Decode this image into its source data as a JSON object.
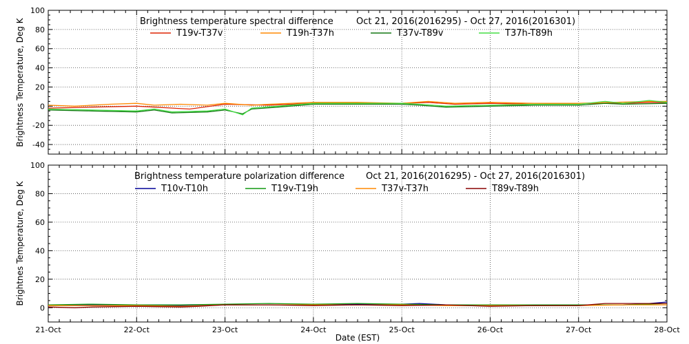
{
  "chart_data": [
    {
      "type": "line",
      "title": "Brightness temperature spectral difference",
      "date_range": "Oct 21, 2016(2016295) - Oct 27, 2016(2016301)",
      "ylabel": "Brightness Temperature, Deg K",
      "xlim": [
        0,
        7
      ],
      "ylim": [
        -50,
        100
      ],
      "yticks": [
        -40,
        -20,
        0,
        20,
        40,
        60,
        80,
        100
      ],
      "grid": true,
      "legend_position": "top",
      "series": [
        {
          "name": "T19v-T37v",
          "color": "#dd2200",
          "points": [
            [
              0,
              -2
            ],
            [
              0.5,
              -1
            ],
            [
              1,
              0
            ],
            [
              1.2,
              -1
            ],
            [
              1.6,
              -3
            ],
            [
              2,
              2
            ],
            [
              2.5,
              1
            ],
            [
              3,
              3
            ],
            [
              3.5,
              3
            ],
            [
              4,
              3
            ],
            [
              4.3,
              4
            ],
            [
              4.6,
              2
            ],
            [
              5,
              3
            ],
            [
              5.5,
              2
            ],
            [
              6,
              3
            ],
            [
              6.5,
              3
            ],
            [
              6.8,
              4
            ],
            [
              7,
              4
            ]
          ]
        },
        {
          "name": "T19h-T37h",
          "color": "#ff8800",
          "points": [
            [
              0,
              1
            ],
            [
              0.3,
              0
            ],
            [
              0.7,
              2
            ],
            [
              1,
              3
            ],
            [
              1.2,
              1
            ],
            [
              1.5,
              2
            ],
            [
              1.8,
              1
            ],
            [
              2,
              3
            ],
            [
              2.3,
              1
            ],
            [
              2.5,
              2
            ],
            [
              3,
              4
            ],
            [
              3.5,
              4
            ],
            [
              4,
              3
            ],
            [
              4.3,
              5
            ],
            [
              4.6,
              3
            ],
            [
              5,
              4
            ],
            [
              5.5,
              3
            ],
            [
              6,
              3
            ],
            [
              6.4,
              4
            ],
            [
              6.8,
              5
            ],
            [
              7,
              5
            ]
          ]
        },
        {
          "name": "T37v-T89v",
          "color": "#117711",
          "points": [
            [
              0,
              -4
            ],
            [
              0.5,
              -5
            ],
            [
              1,
              -6
            ],
            [
              1.2,
              -4
            ],
            [
              1.4,
              -7
            ],
            [
              1.8,
              -6
            ],
            [
              2,
              -4
            ],
            [
              2.2,
              -8
            ],
            [
              2.3,
              -3
            ],
            [
              2.6,
              -1
            ],
            [
              3,
              2
            ],
            [
              3.5,
              2
            ],
            [
              4,
              2
            ],
            [
              4.2,
              1
            ],
            [
              4.5,
              -1
            ],
            [
              5,
              0
            ],
            [
              5.5,
              1
            ],
            [
              6,
              1
            ],
            [
              6.3,
              3
            ],
            [
              6.5,
              2
            ],
            [
              7,
              3
            ]
          ]
        },
        {
          "name": "T37h-T89h",
          "color": "#44dd44",
          "points": [
            [
              0,
              -3
            ],
            [
              0.5,
              -4
            ],
            [
              1,
              -5
            ],
            [
              1.2,
              -3
            ],
            [
              1.4,
              -6
            ],
            [
              1.8,
              -5
            ],
            [
              2,
              -3
            ],
            [
              2.2,
              -9
            ],
            [
              2.3,
              -2
            ],
            [
              2.6,
              0
            ],
            [
              3,
              3
            ],
            [
              3.5,
              3
            ],
            [
              4,
              3
            ],
            [
              4.2,
              2
            ],
            [
              4.5,
              0
            ],
            [
              5,
              1
            ],
            [
              5.5,
              2
            ],
            [
              6,
              2
            ],
            [
              6.3,
              5
            ],
            [
              6.5,
              3
            ],
            [
              6.8,
              6
            ],
            [
              7,
              4
            ]
          ]
        }
      ]
    },
    {
      "type": "line",
      "title": "Brightness temperature polarization difference",
      "date_range": "Oct 21, 2016(2016295) - Oct 27, 2016(2016301)",
      "xlabel": "Date (EST)",
      "ylabel": "Brightnes Temperature, Deg K",
      "xlim": [
        0,
        7
      ],
      "ylim": [
        -10,
        100
      ],
      "yticks": [
        0,
        20,
        40,
        60,
        80,
        100
      ],
      "xticks": [
        "21-Oct",
        "22-Oct",
        "23-Oct",
        "24-Oct",
        "25-Oct",
        "26-Oct",
        "27-Oct",
        "28-Oct"
      ],
      "grid": true,
      "legend_position": "top",
      "series": [
        {
          "name": "T10v-T10h",
          "color": "#000099",
          "points": [
            [
              0,
              2
            ],
            [
              0.5,
              2
            ],
            [
              1,
              2
            ],
            [
              1.5,
              1.5
            ],
            [
              2,
              2
            ],
            [
              2.5,
              2
            ],
            [
              3,
              2
            ],
            [
              3.5,
              2.5
            ],
            [
              4,
              2.5
            ],
            [
              4.2,
              3
            ],
            [
              4.5,
              2
            ],
            [
              5,
              2
            ],
            [
              5.5,
              2
            ],
            [
              6,
              2
            ],
            [
              6.5,
              2
            ],
            [
              6.8,
              3
            ],
            [
              7,
              4
            ]
          ]
        },
        {
          "name": "T19v-T19h",
          "color": "#119911",
          "points": [
            [
              0,
              2
            ],
            [
              0.5,
              2.5
            ],
            [
              1,
              2
            ],
            [
              1.5,
              2
            ],
            [
              2,
              2.5
            ],
            [
              2.5,
              3
            ],
            [
              3,
              2.5
            ],
            [
              3.5,
              3
            ],
            [
              4,
              2.5
            ],
            [
              4.5,
              2
            ],
            [
              5,
              2
            ],
            [
              5.5,
              2
            ],
            [
              6,
              2
            ],
            [
              6.5,
              2
            ],
            [
              7,
              3
            ]
          ]
        },
        {
          "name": "T37v-T37h",
          "color": "#ff8800",
          "points": [
            [
              0,
              1.5
            ],
            [
              0.5,
              1.5
            ],
            [
              1,
              1.5
            ],
            [
              1.5,
              1
            ],
            [
              2,
              2
            ],
            [
              2.5,
              2
            ],
            [
              3,
              2
            ],
            [
              3.5,
              2
            ],
            [
              4,
              2
            ],
            [
              4.5,
              1.5
            ],
            [
              5,
              1.5
            ],
            [
              5.5,
              1.5
            ],
            [
              6,
              1.5
            ],
            [
              6.5,
              2
            ],
            [
              7,
              2
            ]
          ]
        },
        {
          "name": "T89v-T89h",
          "color": "#880000",
          "points": [
            [
              0,
              0.5
            ],
            [
              0.3,
              0
            ],
            [
              0.5,
              0.5
            ],
            [
              1,
              1
            ],
            [
              1.5,
              0.5
            ],
            [
              1.7,
              1
            ],
            [
              2,
              2
            ],
            [
              2.5,
              2
            ],
            [
              3,
              1.5
            ],
            [
              3.5,
              2
            ],
            [
              4,
              1.5
            ],
            [
              4.5,
              2
            ],
            [
              5,
              1
            ],
            [
              5.5,
              1.5
            ],
            [
              6,
              1.5
            ],
            [
              6.3,
              3
            ],
            [
              6.5,
              3
            ],
            [
              6.8,
              3
            ],
            [
              7,
              3
            ]
          ]
        }
      ]
    }
  ]
}
